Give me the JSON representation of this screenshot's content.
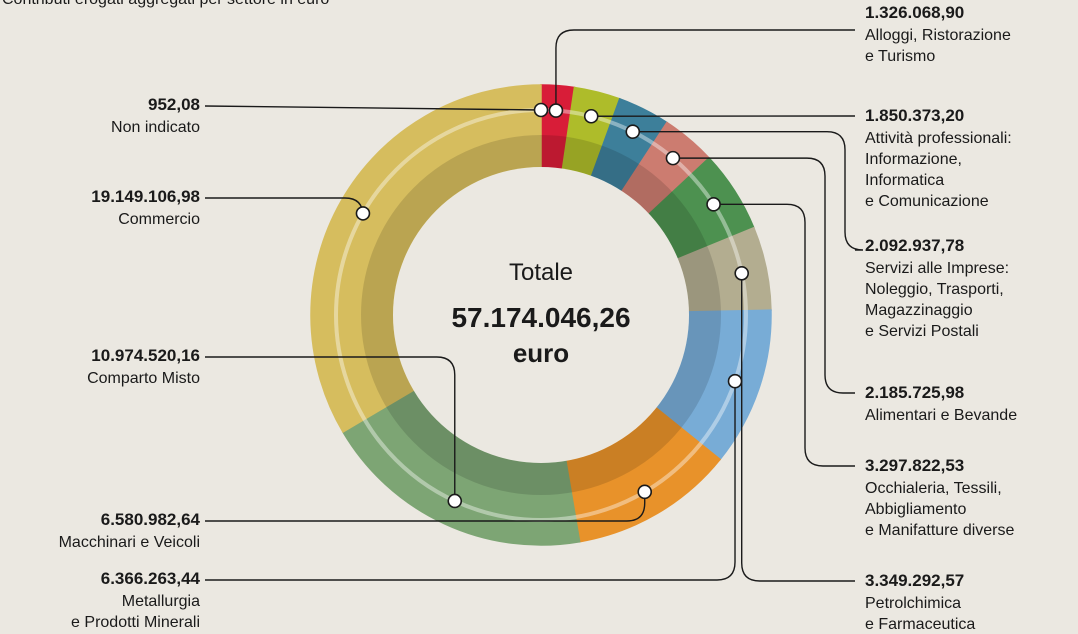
{
  "chart_data": {
    "type": "donut",
    "title": "Contributi erogati aggregati per settore in euro",
    "center": {
      "label": "Totale",
      "value": 57174046.26,
      "value_label": "57.174.046,26",
      "unit": "euro"
    },
    "categories": [
      "Non indicato",
      "Alloggi, Ristorazione\ne Turismo",
      "Attività professionali:\nInformazione,\nInformatica\ne Comunicazione",
      "Servizi alle Imprese:\nNoleggio, Trasporti,\nMagazzinaggio\ne Servizi Postali",
      "Alimentari e Bevande",
      "Occhialeria, Tessili,\nAbbigliamento\ne Manifatture diverse",
      "Petrolchimica\ne Farmaceutica",
      "Metallurgia\ne Prodotti Minerali",
      "Macchinari e Veicoli",
      "Comparto Misto",
      "Commercio"
    ],
    "values": [
      952.08,
      1326068.9,
      1850373.2,
      2092937.78,
      2185725.98,
      3297822.53,
      3349292.57,
      6366263.44,
      6580982.64,
      10974520.16,
      19149106.98
    ],
    "value_labels": [
      "952,08",
      "1.326.068,90",
      "1.850.373,20",
      "2.092.937,78",
      "2.185.725,98",
      "3.297.822,53",
      "3.349.292,57",
      "6.366.263,44",
      "6.580.982,64",
      "10.974.520,16",
      "19.149.106,98"
    ],
    "colors": [
      "#f0d33a",
      "#d81d38",
      "#aebc2a",
      "#3d7f9a",
      "#cc7c70",
      "#4d9150",
      "#b3ad90",
      "#78acd6",
      "#e8922a",
      "#7da574",
      "#d6bd5e"
    ]
  }
}
